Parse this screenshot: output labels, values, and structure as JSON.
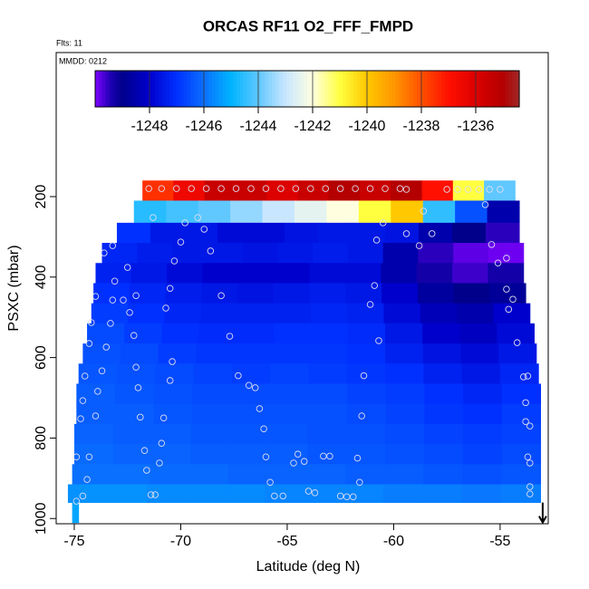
{
  "chart_data": {
    "type": "heatmap",
    "title": "ORCAS RF11 O2_FFF_FMPD",
    "flights_label": "Flts: 11",
    "date_label": "MMDD: 0212",
    "x_label": "Latitude (deg N)",
    "y_label": "PSXC (mbar)",
    "xlim": [
      -75.85,
      -52.74
    ],
    "xticks": [
      -75,
      -70,
      -65,
      -60,
      -55
    ],
    "ylim": [
      1013,
      -158
    ],
    "yticks": [
      200,
      400,
      600,
      800,
      1000
    ],
    "colorbar": {
      "lim": [
        -1250,
        -1234.4
      ],
      "ticks": [
        -1248,
        -1246,
        -1244,
        -1242,
        -1240,
        -1238,
        -1236
      ],
      "colorscale": [
        [
          -1250,
          "#7f00ff"
        ],
        [
          -1249.4,
          "#1a00b0"
        ],
        [
          -1249,
          "#00008b"
        ],
        [
          -1248,
          "#0000cd"
        ],
        [
          -1247,
          "#0030ff"
        ],
        [
          -1246,
          "#0a70ff"
        ],
        [
          -1245,
          "#00b4ff"
        ],
        [
          -1244,
          "#60c8ff"
        ],
        [
          -1243,
          "#c8e6ff"
        ],
        [
          -1242,
          "#ffffe0"
        ],
        [
          -1241,
          "#ffff40"
        ],
        [
          -1240,
          "#ffc800"
        ],
        [
          -1239,
          "#ff9600"
        ],
        [
          -1238,
          "#ff5000"
        ],
        [
          -1237,
          "#ff1000"
        ],
        [
          -1236,
          "#dc0000"
        ],
        [
          -1235,
          "#b40000"
        ],
        [
          -1234.4,
          "#a02828"
        ]
      ]
    },
    "bands": [
      {
        "p": [
          160,
          210
        ],
        "lat": [
          -71.8,
          -54.3
        ],
        "values": [
          -1237.5,
          -1236.5,
          -1235.5,
          -1235.5,
          -1236,
          -1235.5,
          -1235,
          -1235.5,
          -1235,
          -1237,
          -1241,
          -1244
        ]
      },
      {
        "p": [
          210,
          265
        ],
        "lat": [
          -72.2,
          -54.1
        ],
        "values": [
          -1244.6,
          -1244.3,
          -1244,
          -1243.5,
          -1243,
          -1242.5,
          -1242,
          -1241,
          -1240,
          -1244.5,
          -1246.5,
          -1248.5
        ]
      },
      {
        "p": [
          265,
          315
        ],
        "lat": [
          -73.0,
          -54.1
        ],
        "values": [
          -1247,
          -1247.5,
          -1247.5,
          -1247.8,
          -1247.8,
          -1247.6,
          -1247.5,
          -1247.5,
          -1247.6,
          -1248.5,
          -1249,
          -1249.5
        ]
      },
      {
        "p": [
          315,
          365
        ],
        "lat": [
          -73.7,
          -53.9
        ],
        "values": [
          -1247.2,
          -1247.4,
          -1247.5,
          -1247.5,
          -1247.6,
          -1247.5,
          -1247.4,
          -1247.5,
          -1248.5,
          -1249.5,
          -1249.8,
          -1249.9
        ]
      },
      {
        "p": [
          365,
          415
        ],
        "lat": [
          -74.0,
          -53.9
        ],
        "values": [
          -1247.3,
          -1247.5,
          -1247.8,
          -1248,
          -1248,
          -1248,
          -1247.8,
          -1247.8,
          -1248.5,
          -1249.3,
          -1249.6,
          -1249.3
        ]
      },
      {
        "p": [
          415,
          465
        ],
        "lat": [
          -74.1,
          -53.8
        ],
        "values": [
          -1247,
          -1247.2,
          -1247.4,
          -1247.5,
          -1247.6,
          -1247.5,
          -1247.4,
          -1247.5,
          -1248,
          -1248.7,
          -1249,
          -1248.8
        ]
      },
      {
        "p": [
          465,
          515
        ],
        "lat": [
          -74.2,
          -53.6
        ],
        "values": [
          -1246.8,
          -1247,
          -1247.2,
          -1247.3,
          -1247.3,
          -1247.3,
          -1247.2,
          -1247.3,
          -1247.8,
          -1248.3,
          -1248.5,
          -1248
        ]
      },
      {
        "p": [
          515,
          565
        ],
        "lat": [
          -74.4,
          -53.4
        ],
        "values": [
          -1246.6,
          -1246.8,
          -1247,
          -1247.1,
          -1247.1,
          -1247,
          -1247,
          -1247.1,
          -1247.5,
          -1248,
          -1248.2,
          -1247.8
        ]
      },
      {
        "p": [
          565,
          615
        ],
        "lat": [
          -74.6,
          -53.3
        ],
        "values": [
          -1246.5,
          -1246.6,
          -1246.8,
          -1246.9,
          -1246.9,
          -1246.9,
          -1246.9,
          -1247,
          -1247.3,
          -1247.6,
          -1247.8,
          -1247.5
        ]
      },
      {
        "p": [
          615,
          665
        ],
        "lat": [
          -74.8,
          -53.2
        ],
        "values": [
          -1246.4,
          -1246.5,
          -1246.6,
          -1246.7,
          -1246.8,
          -1246.7,
          -1246.8,
          -1246.9,
          -1247,
          -1247.3,
          -1247.5,
          -1247.2
        ]
      },
      {
        "p": [
          665,
          715
        ],
        "lat": [
          -74.9,
          -53.1
        ],
        "values": [
          -1246.3,
          -1246.4,
          -1246.5,
          -1246.6,
          -1246.6,
          -1246.6,
          -1246.6,
          -1246.7,
          -1246.8,
          -1247,
          -1247.2,
          -1247
        ]
      },
      {
        "p": [
          715,
          765
        ],
        "lat": [
          -74.9,
          -53.1
        ],
        "values": [
          -1246.3,
          -1246.3,
          -1246.4,
          -1246.5,
          -1246.5,
          -1246.5,
          -1246.5,
          -1246.6,
          -1246.7,
          -1246.9,
          -1247,
          -1246.8
        ]
      },
      {
        "p": [
          765,
          815
        ],
        "lat": [
          -75.0,
          -53.1
        ],
        "values": [
          -1246.2,
          -1246.3,
          -1246.3,
          -1246.4,
          -1246.4,
          -1246.4,
          -1246.5,
          -1246.5,
          -1246.6,
          -1246.7,
          -1246.8,
          -1246.7
        ]
      },
      {
        "p": [
          815,
          865
        ],
        "lat": [
          -75.0,
          -53.1
        ],
        "values": [
          -1246.1,
          -1246.2,
          -1246.2,
          -1246.3,
          -1246.3,
          -1246.3,
          -1246.4,
          -1246.4,
          -1246.5,
          -1246.6,
          -1246.7,
          -1246.6
        ]
      },
      {
        "p": [
          865,
          915
        ],
        "lat": [
          -75.1,
          -53.1
        ],
        "values": [
          -1246,
          -1246,
          -1246.1,
          -1246.1,
          -1246.2,
          -1246.2,
          -1246.2,
          -1246.3,
          -1246.3,
          -1246.4,
          -1246.5,
          -1246.4
        ]
      },
      {
        "p": [
          915,
          960
        ],
        "lat": [
          -75.3,
          -53.1
        ],
        "values": [
          -1245.5,
          -1245.5,
          -1245.6,
          -1245.6,
          -1245.6,
          -1245.7,
          -1245.7,
          -1245.7,
          -1245.8,
          -1245.8,
          -1245.9,
          -1245.8
        ]
      },
      {
        "p": [
          960,
          1010
        ],
        "lat": [
          -75.1,
          -74.8
        ],
        "values": [
          -1245.2
        ]
      }
    ],
    "points": [
      [
        -71.5,
        180
      ],
      [
        -70.9,
        180
      ],
      [
        -70.2,
        180
      ],
      [
        -69.5,
        180
      ],
      [
        -68.8,
        180
      ],
      [
        -68.1,
        180
      ],
      [
        -67.4,
        180
      ],
      [
        -66.7,
        180
      ],
      [
        -66,
        180
      ],
      [
        -65.3,
        180
      ],
      [
        -64.6,
        180
      ],
      [
        -63.9,
        180
      ],
      [
        -63.2,
        180
      ],
      [
        -62.5,
        180
      ],
      [
        -61.8,
        180
      ],
      [
        -61.1,
        180
      ],
      [
        -60.4,
        180
      ],
      [
        -59.7,
        180
      ],
      [
        -59.4,
        182
      ],
      [
        -57.5,
        182
      ],
      [
        -57,
        182
      ],
      [
        -56.5,
        182
      ],
      [
        -56,
        182
      ],
      [
        -55.5,
        182
      ],
      [
        -55,
        182
      ],
      [
        -71.3,
        252
      ],
      [
        -69.8,
        265
      ],
      [
        -69.2,
        252
      ],
      [
        -60.5,
        265
      ],
      [
        -58.6,
        236
      ],
      [
        -55.7,
        220
      ],
      [
        -68.9,
        281
      ],
      [
        -70.0,
        313
      ],
      [
        -68.6,
        335
      ],
      [
        -73.2,
        322
      ],
      [
        -73.6,
        340
      ],
      [
        -72.5,
        376
      ],
      [
        -70.3,
        360
      ],
      [
        -60.8,
        308
      ],
      [
        -59.4,
        292
      ],
      [
        -58.8,
        322
      ],
      [
        -58.2,
        292
      ],
      [
        -55.4,
        319
      ],
      [
        -55.1,
        365
      ],
      [
        -54.7,
        353
      ],
      [
        -73.1,
        410
      ],
      [
        -72.7,
        457
      ],
      [
        -74.0,
        448
      ],
      [
        -73.2,
        457
      ],
      [
        -72.1,
        446
      ],
      [
        -70.5,
        428
      ],
      [
        -70.7,
        477
      ],
      [
        -68.1,
        446
      ],
      [
        -60.9,
        421
      ],
      [
        -61.1,
        468
      ],
      [
        -54.7,
        430
      ],
      [
        -54.6,
        480
      ],
      [
        -54.4,
        455
      ],
      [
        -72.4,
        488
      ],
      [
        -74.2,
        513
      ],
      [
        -73.3,
        515
      ],
      [
        -72.2,
        545
      ],
      [
        -67.7,
        547
      ],
      [
        -74.3,
        565
      ],
      [
        -73.5,
        574
      ],
      [
        -60.7,
        558
      ],
      [
        -54.2,
        563
      ],
      [
        -73.7,
        633
      ],
      [
        -72.1,
        624
      ],
      [
        -70.4,
        610
      ],
      [
        -70.5,
        657
      ],
      [
        -74.5,
        646
      ],
      [
        -67.3,
        645
      ],
      [
        -66.8,
        669
      ],
      [
        -66.5,
        675
      ],
      [
        -66.3,
        727
      ],
      [
        -73.9,
        684
      ],
      [
        -74.6,
        707
      ],
      [
        -72,
        675
      ],
      [
        -61.4,
        645
      ],
      [
        -53.9,
        648
      ],
      [
        -53.7,
        646
      ],
      [
        -74.7,
        752
      ],
      [
        -74,
        745
      ],
      [
        -71.9,
        748
      ],
      [
        -70.8,
        750
      ],
      [
        -66.1,
        777
      ],
      [
        -61.5,
        745
      ],
      [
        -53.8,
        712
      ],
      [
        -53.8,
        759
      ],
      [
        -53.6,
        770
      ],
      [
        -71.7,
        831
      ],
      [
        -70.9,
        813
      ],
      [
        -74.3,
        847
      ],
      [
        -74.9,
        847
      ],
      [
        -71,
        862
      ],
      [
        -71.6,
        880
      ],
      [
        -66,
        847
      ],
      [
        -64.5,
        840
      ],
      [
        -64.7,
        862
      ],
      [
        -64.2,
        858
      ],
      [
        -63.3,
        845
      ],
      [
        -63,
        845
      ],
      [
        -61.7,
        850
      ],
      [
        -53.7,
        847
      ],
      [
        -53.6,
        862
      ],
      [
        -74.4,
        903
      ],
      [
        -65.8,
        910
      ],
      [
        -61.6,
        910
      ],
      [
        -71.4,
        941
      ],
      [
        -71.2,
        941
      ],
      [
        -65.6,
        944
      ],
      [
        -65.2,
        944
      ],
      [
        -64,
        932
      ],
      [
        -63.7,
        936
      ],
      [
        -62.5,
        944
      ],
      [
        -62.2,
        946
      ],
      [
        -61.9,
        946
      ],
      [
        -74.6,
        944
      ],
      [
        -74.9,
        957
      ],
      [
        -53.6,
        921
      ],
      [
        -53.6,
        939
      ]
    ],
    "position": {
      "lat": -53.0,
      "p": 1010
    }
  }
}
